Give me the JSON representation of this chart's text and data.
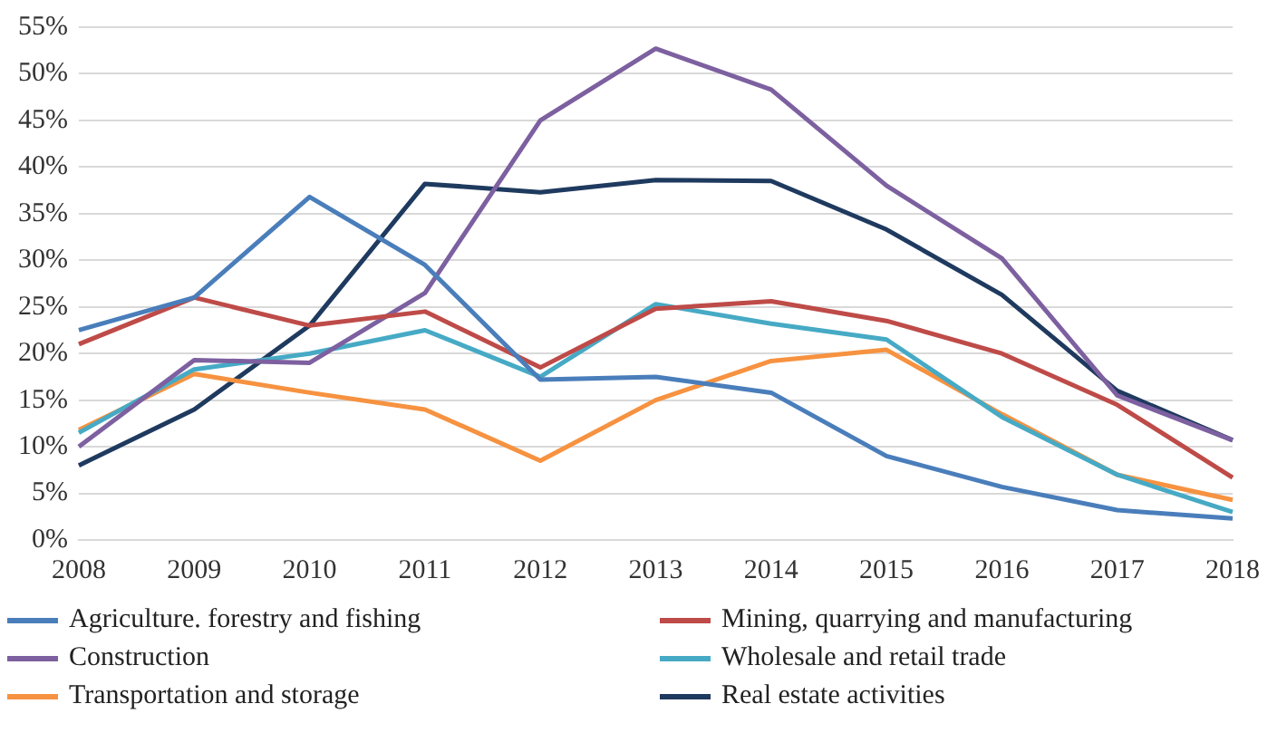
{
  "chart_data": {
    "type": "line",
    "categories": [
      "2008",
      "2009",
      "2010",
      "2011",
      "2012",
      "2013",
      "2014",
      "2015",
      "2016",
      "2017",
      "2018"
    ],
    "series": [
      {
        "name": "Agriculture. forestry and fishing",
        "color": "#4a7ebb",
        "values": [
          22.5,
          26,
          36.8,
          29.5,
          17.2,
          17.5,
          15.8,
          9,
          5.7,
          3.2,
          2.3
        ]
      },
      {
        "name": "Mining, quarrying and manufacturing",
        "color": "#be4b48",
        "values": [
          21,
          26,
          23,
          24.5,
          18.5,
          24.8,
          25.6,
          23.5,
          20,
          14.5,
          6.7
        ]
      },
      {
        "name": "Construction",
        "color": "#7d60a0",
        "values": [
          10,
          19.3,
          19,
          26.5,
          45,
          52.7,
          48.3,
          38,
          30.2,
          15.5,
          10.7
        ]
      },
      {
        "name": "Wholesale and retail trade",
        "color": "#46aac5",
        "values": [
          11.5,
          18.3,
          20,
          22.5,
          17.5,
          25.3,
          23.2,
          21.5,
          13.2,
          7,
          3
        ]
      },
      {
        "name": "Transportation and storage",
        "color": "#f69240",
        "values": [
          11.8,
          17.8,
          15.8,
          14,
          8.5,
          15,
          19.2,
          20.4,
          13.5,
          7,
          4.3
        ]
      },
      {
        "name": "Real estate activities",
        "color": "#1f3a5f",
        "values": [
          8,
          14,
          23,
          38.2,
          37.3,
          38.6,
          38.5,
          33.3,
          26.3,
          16,
          10.7
        ]
      }
    ],
    "ylim": [
      0,
      55
    ],
    "yticks": [
      {
        "value": 0,
        "label": "0%"
      },
      {
        "value": 5,
        "label": "5%"
      },
      {
        "value": 10,
        "label": "10%"
      },
      {
        "value": 15,
        "label": "15%"
      },
      {
        "value": 20,
        "label": "20%"
      },
      {
        "value": 25,
        "label": "25%"
      },
      {
        "value": 30,
        "label": "30%"
      },
      {
        "value": 35,
        "label": "35%"
      },
      {
        "value": 40,
        "label": "40%"
      },
      {
        "value": 45,
        "label": "45%"
      },
      {
        "value": 50,
        "label": "50%"
      },
      {
        "value": 55,
        "label": "55%"
      }
    ],
    "grid": "y",
    "legend": "bottom",
    "marker": "none",
    "line_style": "solid"
  }
}
